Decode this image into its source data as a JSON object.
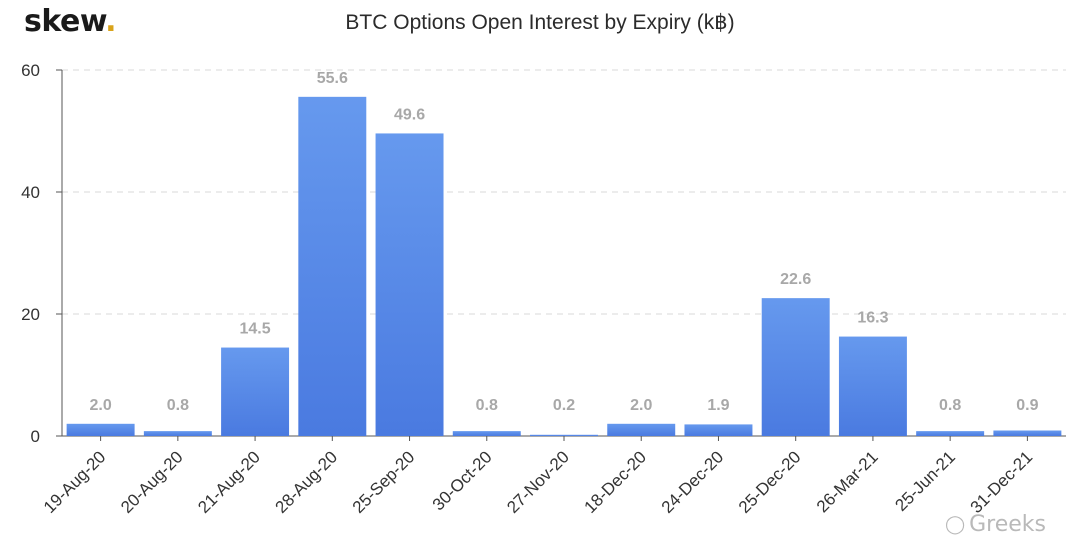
{
  "brand": {
    "name": "skew",
    "dot": "."
  },
  "watermark": {
    "icon": "wechat-icon",
    "text": "Greeks"
  },
  "colors": {
    "bar_top": "#6699ee",
    "bar_bottom": "#4a7ae0",
    "label": "#a8a8a8",
    "axis": "#555555",
    "grid": "#d9d9d9",
    "brand_dot": "#d9a31a"
  },
  "chart_data": {
    "type": "bar",
    "title": "BTC Options Open Interest by Expiry (k฿)",
    "xlabel": "",
    "ylabel": "",
    "categories": [
      "19-Aug-20",
      "20-Aug-20",
      "21-Aug-20",
      "28-Aug-20",
      "25-Sep-20",
      "30-Oct-20",
      "27-Nov-20",
      "18-Dec-20",
      "24-Dec-20",
      "25-Dec-20",
      "26-Mar-21",
      "25-Jun-21",
      "31-Dec-21"
    ],
    "values": [
      2.0,
      0.8,
      14.5,
      55.6,
      49.6,
      0.8,
      0.2,
      2.0,
      1.9,
      22.6,
      16.3,
      0.8,
      0.9
    ],
    "value_labels": [
      "2.0",
      "0.8",
      "14.5",
      "55.6",
      "49.6",
      "0.8",
      "0.2",
      "2.0",
      "1.9",
      "22.6",
      "16.3",
      "0.8",
      "0.9"
    ],
    "ylim": [
      0,
      60
    ],
    "yticks": [
      0,
      20,
      40,
      60
    ],
    "ytick_labels": [
      "0",
      "20",
      "40",
      "60"
    ],
    "grid": true
  }
}
